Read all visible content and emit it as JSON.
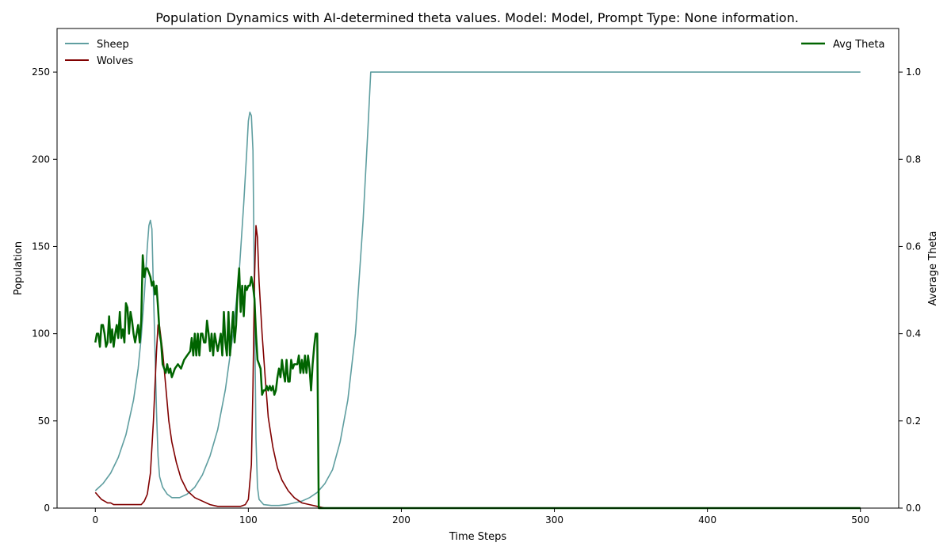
{
  "chart_data": {
    "type": "line",
    "title": "Population Dynamics with AI-determined theta values. Model: Model, Prompt Type: None information.",
    "xlabel": "Time Steps",
    "ylabel": "Population",
    "y2label": "Average Theta",
    "xlim": [
      -25,
      525
    ],
    "ylim": [
      0,
      275
    ],
    "y2lim": [
      0,
      1.1
    ],
    "xticks": [
      0,
      100,
      200,
      300,
      400,
      500
    ],
    "yticks": [
      0,
      50,
      100,
      150,
      200,
      250
    ],
    "y2ticks": [
      0.0,
      0.2,
      0.4,
      0.6,
      0.8,
      1.0
    ],
    "y2tick_labels": [
      "0.0",
      "0.2",
      "0.4",
      "0.6",
      "0.8",
      "1.0"
    ],
    "grid": false,
    "legend_left": "top-left",
    "legend_right": "top-right",
    "series": [
      {
        "name": "Sheep",
        "axis": "left",
        "color": "#5f9ea0",
        "points": [
          [
            0,
            10
          ],
          [
            5,
            14
          ],
          [
            10,
            20
          ],
          [
            15,
            29
          ],
          [
            20,
            42
          ],
          [
            25,
            62
          ],
          [
            28,
            80
          ],
          [
            30,
            98
          ],
          [
            32,
            122
          ],
          [
            34,
            150
          ],
          [
            35,
            162
          ],
          [
            36,
            165
          ],
          [
            37,
            160
          ],
          [
            38,
            125
          ],
          [
            39,
            90
          ],
          [
            40,
            55
          ],
          [
            41,
            30
          ],
          [
            42,
            18
          ],
          [
            44,
            12
          ],
          [
            47,
            8
          ],
          [
            50,
            6
          ],
          [
            55,
            6
          ],
          [
            60,
            8
          ],
          [
            65,
            12
          ],
          [
            70,
            19
          ],
          [
            75,
            30
          ],
          [
            80,
            45
          ],
          [
            85,
            68
          ],
          [
            90,
            100
          ],
          [
            94,
            135
          ],
          [
            97,
            175
          ],
          [
            99,
            205
          ],
          [
            100,
            222
          ],
          [
            101,
            227
          ],
          [
            102,
            225
          ],
          [
            103,
            205
          ],
          [
            104,
            120
          ],
          [
            105,
            40
          ],
          [
            106,
            12
          ],
          [
            107,
            5
          ],
          [
            110,
            2
          ],
          [
            115,
            1.5
          ],
          [
            120,
            1.5
          ],
          [
            125,
            2
          ],
          [
            130,
            3
          ],
          [
            135,
            4
          ],
          [
            140,
            6
          ],
          [
            145,
            9
          ],
          [
            150,
            14
          ],
          [
            155,
            22
          ],
          [
            160,
            38
          ],
          [
            165,
            62
          ],
          [
            170,
            100
          ],
          [
            175,
            165
          ],
          [
            178,
            215
          ],
          [
            180,
            250
          ],
          [
            200,
            250
          ],
          [
            250,
            250
          ],
          [
            300,
            250
          ],
          [
            350,
            250
          ],
          [
            400,
            250
          ],
          [
            450,
            250
          ],
          [
            500,
            250
          ]
        ]
      },
      {
        "name": "Wolves",
        "axis": "left",
        "color": "#800000",
        "points": [
          [
            0,
            9
          ],
          [
            2,
            7
          ],
          [
            4,
            5
          ],
          [
            6,
            4
          ],
          [
            8,
            3
          ],
          [
            10,
            3
          ],
          [
            12,
            2
          ],
          [
            15,
            2
          ],
          [
            20,
            2
          ],
          [
            25,
            2
          ],
          [
            30,
            2
          ],
          [
            32,
            4
          ],
          [
            34,
            8
          ],
          [
            36,
            20
          ],
          [
            38,
            50
          ],
          [
            40,
            90
          ],
          [
            41,
            105
          ],
          [
            42,
            104
          ],
          [
            44,
            90
          ],
          [
            46,
            70
          ],
          [
            48,
            50
          ],
          [
            50,
            38
          ],
          [
            53,
            26
          ],
          [
            56,
            17
          ],
          [
            60,
            10
          ],
          [
            65,
            6
          ],
          [
            70,
            4
          ],
          [
            75,
            2
          ],
          [
            80,
            1
          ],
          [
            85,
            1
          ],
          [
            90,
            1
          ],
          [
            95,
            1
          ],
          [
            98,
            2
          ],
          [
            100,
            5
          ],
          [
            102,
            25
          ],
          [
            103,
            70
          ],
          [
            104,
            130
          ],
          [
            105,
            162
          ],
          [
            106,
            155
          ],
          [
            107,
            130
          ],
          [
            109,
            100
          ],
          [
            111,
            75
          ],
          [
            113,
            52
          ],
          [
            116,
            35
          ],
          [
            119,
            23
          ],
          [
            122,
            16
          ],
          [
            126,
            10
          ],
          [
            130,
            6
          ],
          [
            135,
            3
          ],
          [
            140,
            2
          ],
          [
            145,
            1
          ],
          [
            150,
            0
          ],
          [
            200,
            0
          ],
          [
            300,
            0
          ],
          [
            400,
            0
          ],
          [
            500,
            0
          ]
        ]
      },
      {
        "name": "Avg Theta",
        "axis": "right",
        "color": "#006400",
        "points": [
          [
            0,
            0.38
          ],
          [
            1,
            0.4
          ],
          [
            2,
            0.4
          ],
          [
            3,
            0.37
          ],
          [
            4,
            0.42
          ],
          [
            5,
            0.42
          ],
          [
            6,
            0.4
          ],
          [
            7,
            0.37
          ],
          [
            8,
            0.38
          ],
          [
            9,
            0.44
          ],
          [
            10,
            0.38
          ],
          [
            11,
            0.41
          ],
          [
            12,
            0.37
          ],
          [
            13,
            0.4
          ],
          [
            14,
            0.42
          ],
          [
            15,
            0.39
          ],
          [
            16,
            0.45
          ],
          [
            17,
            0.39
          ],
          [
            18,
            0.41
          ],
          [
            19,
            0.38
          ],
          [
            20,
            0.47
          ],
          [
            21,
            0.46
          ],
          [
            22,
            0.4
          ],
          [
            23,
            0.45
          ],
          [
            24,
            0.43
          ],
          [
            25,
            0.4
          ],
          [
            26,
            0.38
          ],
          [
            27,
            0.4
          ],
          [
            28,
            0.42
          ],
          [
            29,
            0.38
          ],
          [
            30,
            0.43
          ],
          [
            31,
            0.58
          ],
          [
            32,
            0.53
          ],
          [
            33,
            0.55
          ],
          [
            34,
            0.55
          ],
          [
            35,
            0.54
          ],
          [
            36,
            0.53
          ],
          [
            37,
            0.51
          ],
          [
            38,
            0.52
          ],
          [
            39,
            0.49
          ],
          [
            40,
            0.51
          ],
          [
            41,
            0.46
          ],
          [
            42,
            0.4
          ],
          [
            43,
            0.38
          ],
          [
            44,
            0.33
          ],
          [
            45,
            0.32
          ],
          [
            46,
            0.31
          ],
          [
            47,
            0.33
          ],
          [
            48,
            0.31
          ],
          [
            49,
            0.32
          ],
          [
            50,
            0.3
          ],
          [
            52,
            0.32
          ],
          [
            54,
            0.33
          ],
          [
            56,
            0.32
          ],
          [
            58,
            0.34
          ],
          [
            60,
            0.35
          ],
          [
            62,
            0.36
          ],
          [
            63,
            0.39
          ],
          [
            64,
            0.35
          ],
          [
            65,
            0.4
          ],
          [
            66,
            0.35
          ],
          [
            67,
            0.4
          ],
          [
            68,
            0.35
          ],
          [
            69,
            0.4
          ],
          [
            70,
            0.4
          ],
          [
            71,
            0.38
          ],
          [
            72,
            0.38
          ],
          [
            73,
            0.43
          ],
          [
            74,
            0.4
          ],
          [
            75,
            0.36
          ],
          [
            76,
            0.4
          ],
          [
            77,
            0.35
          ],
          [
            78,
            0.4
          ],
          [
            79,
            0.38
          ],
          [
            80,
            0.36
          ],
          [
            81,
            0.38
          ],
          [
            82,
            0.4
          ],
          [
            83,
            0.35
          ],
          [
            84,
            0.45
          ],
          [
            85,
            0.38
          ],
          [
            86,
            0.35
          ],
          [
            87,
            0.45
          ],
          [
            88,
            0.35
          ],
          [
            89,
            0.4
          ],
          [
            90,
            0.45
          ],
          [
            91,
            0.38
          ],
          [
            92,
            0.42
          ],
          [
            93,
            0.5
          ],
          [
            94,
            0.55
          ],
          [
            95,
            0.45
          ],
          [
            96,
            0.51
          ],
          [
            97,
            0.44
          ],
          [
            98,
            0.51
          ],
          [
            99,
            0.5
          ],
          [
            100,
            0.51
          ],
          [
            101,
            0.51
          ],
          [
            102,
            0.53
          ],
          [
            103,
            0.51
          ],
          [
            104,
            0.48
          ],
          [
            105,
            0.4
          ],
          [
            106,
            0.34
          ],
          [
            107,
            0.33
          ],
          [
            108,
            0.32
          ],
          [
            109,
            0.26
          ],
          [
            110,
            0.27
          ],
          [
            111,
            0.27
          ],
          [
            112,
            0.28
          ],
          [
            113,
            0.27
          ],
          [
            114,
            0.28
          ],
          [
            115,
            0.27
          ],
          [
            116,
            0.28
          ],
          [
            117,
            0.26
          ],
          [
            118,
            0.27
          ],
          [
            119,
            0.3
          ],
          [
            120,
            0.32
          ],
          [
            121,
            0.3
          ],
          [
            122,
            0.34
          ],
          [
            123,
            0.31
          ],
          [
            124,
            0.29
          ],
          [
            125,
            0.34
          ],
          [
            126,
            0.29
          ],
          [
            127,
            0.29
          ],
          [
            128,
            0.34
          ],
          [
            129,
            0.32
          ],
          [
            130,
            0.33
          ],
          [
            131,
            0.33
          ],
          [
            132,
            0.33
          ],
          [
            133,
            0.35
          ],
          [
            134,
            0.31
          ],
          [
            135,
            0.34
          ],
          [
            136,
            0.31
          ],
          [
            137,
            0.35
          ],
          [
            138,
            0.31
          ],
          [
            139,
            0.35
          ],
          [
            140,
            0.32
          ],
          [
            141,
            0.27
          ],
          [
            142,
            0.33
          ],
          [
            143,
            0.37
          ],
          [
            144,
            0.4
          ],
          [
            145,
            0.4
          ],
          [
            146,
            0.0
          ],
          [
            200,
            0.0
          ],
          [
            300,
            0.0
          ],
          [
            400,
            0.0
          ],
          [
            500,
            0.0
          ]
        ]
      }
    ]
  }
}
